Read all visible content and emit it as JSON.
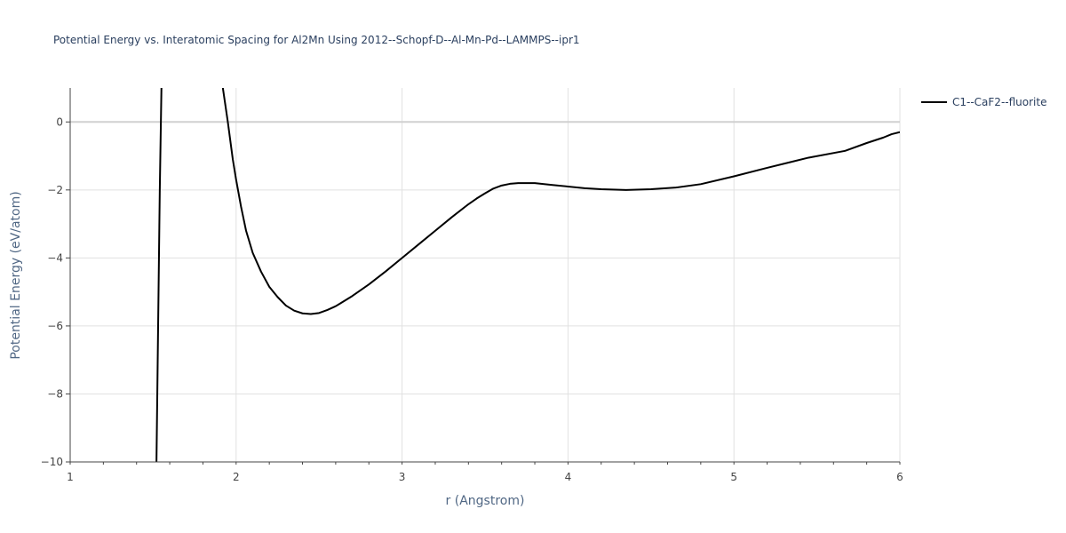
{
  "chart_data": {
    "type": "line",
    "title": "Potential Energy vs. Interatomic Spacing for Al2Mn Using 2012--Schopf-D--Al-Mn-Pd--LAMMPS--ipr1",
    "xlabel": "r (Angstrom)",
    "ylabel": "Potential Energy (eV/atom)",
    "xlim": [
      1,
      6
    ],
    "ylim": [
      -10,
      1
    ],
    "xticks": [
      1,
      2,
      3,
      4,
      5,
      6
    ],
    "xtick_labels": [
      "1",
      "2",
      "3",
      "4",
      "5",
      "6"
    ],
    "yticks": [
      0,
      -2,
      -4,
      -6,
      -8,
      -10
    ],
    "ytick_labels": [
      "0",
      "−2",
      "−4",
      "−6",
      "−8",
      "−10"
    ],
    "grid": true,
    "legend_position": "top-right",
    "series": [
      {
        "name": "C1--CaF2--fluorite",
        "color": "#000000",
        "segments": [
          {
            "x": [
              1.52,
              1.53,
              1.54,
              1.55
            ],
            "y": [
              -10.0,
              -6.0,
              -2.0,
              1.0
            ]
          },
          {
            "x": [
              1.92,
              1.95,
              1.98,
              2.0,
              2.03,
              2.06,
              2.1,
              2.15,
              2.2,
              2.25,
              2.3,
              2.35,
              2.4,
              2.45,
              2.5,
              2.55,
              2.6,
              2.65,
              2.7,
              2.8,
              2.9,
              3.0,
              3.1,
              3.2,
              3.3,
              3.4,
              3.45,
              3.5,
              3.55,
              3.6,
              3.65,
              3.7,
              3.75,
              3.8,
              3.9,
              4.0,
              4.1,
              4.2,
              4.35,
              4.5,
              4.65,
              4.8,
              5.0,
              5.2,
              5.45,
              5.67,
              5.8,
              5.9,
              5.95,
              6.0
            ],
            "y": [
              1.0,
              0.0,
              -1.1,
              -1.7,
              -2.5,
              -3.2,
              -3.85,
              -4.4,
              -4.85,
              -5.15,
              -5.4,
              -5.55,
              -5.63,
              -5.65,
              -5.62,
              -5.53,
              -5.42,
              -5.27,
              -5.12,
              -4.78,
              -4.4,
              -4.0,
              -3.6,
              -3.2,
              -2.8,
              -2.42,
              -2.25,
              -2.1,
              -1.96,
              -1.87,
              -1.82,
              -1.8,
              -1.8,
              -1.8,
              -1.85,
              -1.9,
              -1.95,
              -1.98,
              -2.0,
              -1.98,
              -1.93,
              -1.83,
              -1.6,
              -1.35,
              -1.05,
              -0.85,
              -0.62,
              -0.46,
              -0.36,
              -0.3
            ]
          }
        ]
      }
    ]
  }
}
